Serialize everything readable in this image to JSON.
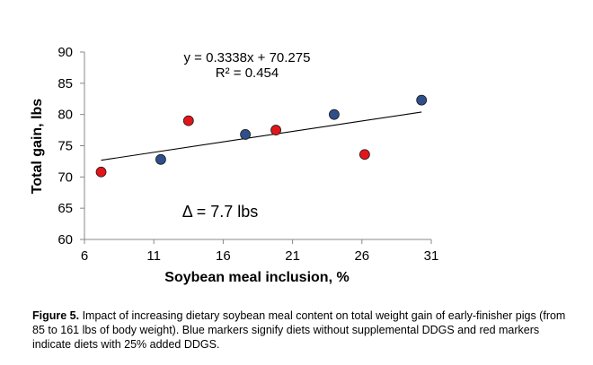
{
  "chart_data": {
    "type": "scatter",
    "xlabel": "Soybean meal inclusion, %",
    "ylabel": "Total gain, lbs",
    "xlim": [
      6,
      31
    ],
    "ylim": [
      60,
      90
    ],
    "xticks": [
      6,
      11,
      16,
      21,
      26,
      31
    ],
    "yticks": [
      60,
      65,
      70,
      75,
      80,
      85,
      90
    ],
    "grid": false,
    "legend": "none",
    "series": [
      {
        "color": "#2f4f8a",
        "x": [
          11.5,
          17.6,
          24.0,
          30.3
        ],
        "y": [
          72.8,
          76.8,
          80.0,
          82.3
        ]
      },
      {
        "color": "#e3151a",
        "x": [
          7.2,
          13.5,
          19.8,
          26.2
        ],
        "y": [
          70.8,
          79.0,
          77.5,
          73.6
        ]
      }
    ],
    "trendline": {
      "slope": 0.3338,
      "intercept": 70.275,
      "x_from": 7.2,
      "x_to": 30.3,
      "color": "#000000"
    },
    "annotations": {
      "equation": "y = 0.3338x + 70.275",
      "r_squared": "R² = 0.454",
      "delta": "Δ = 7.7 lbs"
    }
  },
  "caption": {
    "label": "Figure 5.",
    "text": " Impact of increasing dietary soybean meal content on total weight gain of early-finisher pigs (from 85 to 161 lbs of body weight). Blue markers signify diets without supplemental DDGS and red markers indicate diets with 25% added DDGS."
  }
}
